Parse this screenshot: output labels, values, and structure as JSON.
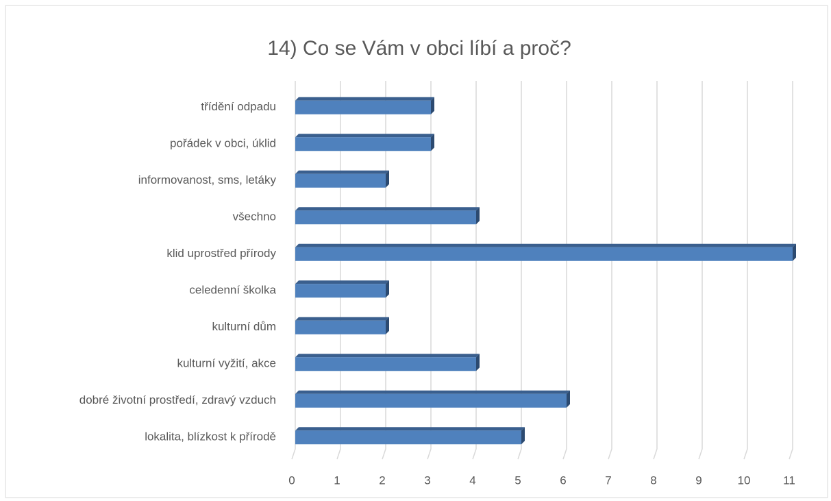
{
  "chart_data": {
    "type": "bar",
    "orientation": "horizontal",
    "title": "14) Co se Vám v obci líbí a proč?",
    "categories": [
      "třídění odpadu",
      "pořádek v obci, úklid",
      "informovanost, sms, letáky",
      "všechno",
      "klid uprostřed přírody",
      "celedenní školka",
      "kulturní dům",
      "kulturní vyžití, akce",
      "dobré životní prostředí, zdravý vzduch",
      "lokalita, blízkost k přírodě"
    ],
    "values": [
      3,
      3,
      2,
      4,
      11,
      2,
      2,
      4,
      6,
      5
    ],
    "color": "#4f81bd",
    "xlim": [
      0,
      11
    ],
    "xticks": [
      0,
      1,
      2,
      3,
      4,
      5,
      6,
      7,
      8,
      9,
      10,
      11
    ],
    "grid": true
  }
}
